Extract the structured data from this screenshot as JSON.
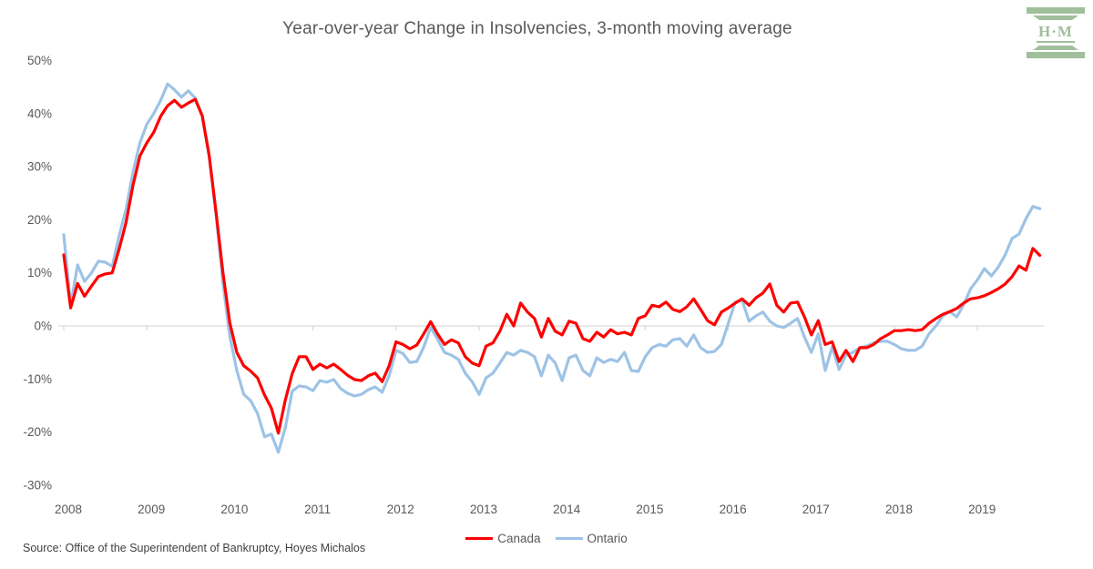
{
  "header": {
    "logo_text": "H·M"
  },
  "footer": {
    "source": "Source: Office of the Superintendent of Bankruptcy, Hoyes Michalos"
  },
  "colors": {
    "title_text": "#595959",
    "axis_text": "#595959",
    "gridline": "#d9d9d9",
    "source_text": "#404040",
    "logo_green": "#a0bf9a"
  },
  "chart_data": {
    "type": "line",
    "title": "Year-over-year Change in Insolvencies, 3-month moving average",
    "frequency": "monthly",
    "x_tick_labels": [
      "2008",
      "2009",
      "2010",
      "2011",
      "2012",
      "2013",
      "2014",
      "2015",
      "2016",
      "2017",
      "2018",
      "2019"
    ],
    "y_tick_labels": [
      "50%",
      "40%",
      "30%",
      "20%",
      "10%",
      "0%",
      "-10%",
      "-20%",
      "-30%"
    ],
    "ylim": [
      -30,
      50
    ],
    "y_tick_step": 10,
    "unit": "%",
    "grid": "zero-line-only",
    "legend_position": "bottom-center",
    "series": [
      {
        "name": "Canada",
        "color": "#ff0000",
        "values": [
          13.4,
          3.4,
          8.0,
          5.6,
          7.5,
          9.3,
          9.8,
          10.0,
          14.5,
          19.5,
          26.5,
          32.0,
          34.5,
          36.5,
          39.5,
          41.5,
          42.5,
          41.2,
          42.0,
          42.7,
          39.6,
          32.2,
          21.4,
          10.0,
          0.5,
          -5.0,
          -7.5,
          -8.5,
          -9.8,
          -13.0,
          -15.5,
          -20.2,
          -14.0,
          -9.0,
          -5.8,
          -5.8,
          -8.2,
          -7.2,
          -7.9,
          -7.2,
          -8.2,
          -9.3,
          -10.1,
          -10.3,
          -9.4,
          -8.9,
          -10.5,
          -7.5,
          -3.0,
          -3.5,
          -4.3,
          -3.6,
          -1.5,
          0.8,
          -1.5,
          -3.5,
          -2.6,
          -3.2,
          -5.8,
          -7.0,
          -7.5,
          -3.8,
          -3.2,
          -1.0,
          2.2,
          0.0,
          4.3,
          2.6,
          1.4,
          -2.1,
          1.4,
          -1.0,
          -1.7,
          0.9,
          0.5,
          -2.4,
          -2.9,
          -1.2,
          -2.1,
          -0.7,
          -1.5,
          -1.2,
          -1.7,
          1.4,
          1.9,
          3.9,
          3.6,
          4.5,
          3.1,
          2.7,
          3.6,
          5.1,
          3.1,
          1.0,
          0.2,
          2.6,
          3.4,
          4.3,
          5.1,
          3.9,
          5.3,
          6.2,
          7.9,
          3.9,
          2.6,
          4.3,
          4.5,
          1.7,
          -1.7,
          1.0,
          -3.5,
          -3.0,
          -6.7,
          -4.6,
          -6.7,
          -4.1,
          -4.1,
          -3.5,
          -2.4,
          -1.7,
          -0.9,
          -0.9,
          -0.7,
          -0.9,
          -0.7,
          0.5,
          1.4,
          2.2,
          2.7,
          3.3,
          4.3,
          5.1,
          5.3,
          5.7,
          6.3,
          7.0,
          7.9,
          9.3,
          11.3,
          10.5,
          14.6,
          13.3
        ]
      },
      {
        "name": "Ontario",
        "color": "#9dc3e6",
        "values": [
          17.2,
          3.9,
          11.5,
          8.4,
          10.0,
          12.2,
          12.0,
          11.2,
          17.0,
          22.0,
          29.0,
          34.5,
          38.0,
          40.0,
          42.5,
          45.6,
          44.5,
          43.1,
          44.3,
          42.9,
          39.6,
          31.9,
          21.0,
          8.0,
          -2.0,
          -8.4,
          -12.9,
          -14.1,
          -16.5,
          -20.9,
          -20.4,
          -23.8,
          -19.2,
          -12.3,
          -11.3,
          -11.5,
          -12.2,
          -10.3,
          -10.6,
          -10.1,
          -11.8,
          -12.7,
          -13.2,
          -12.9,
          -12.0,
          -11.5,
          -12.5,
          -9.4,
          -4.6,
          -5.2,
          -6.9,
          -6.7,
          -4.0,
          -0.3,
          -2.5,
          -5.0,
          -5.5,
          -6.3,
          -8.9,
          -10.5,
          -12.9,
          -9.8,
          -8.9,
          -7.0,
          -5.0,
          -5.5,
          -4.6,
          -5.0,
          -5.8,
          -9.4,
          -5.5,
          -7.0,
          -10.3,
          -6.0,
          -5.5,
          -8.4,
          -9.4,
          -6.0,
          -6.9,
          -6.3,
          -6.7,
          -5.0,
          -8.4,
          -8.6,
          -5.8,
          -4.1,
          -3.5,
          -3.8,
          -2.6,
          -2.4,
          -3.8,
          -1.7,
          -4.1,
          -5.0,
          -4.8,
          -3.5,
          0.5,
          4.5,
          4.8,
          0.9,
          1.9,
          2.6,
          0.9,
          0.0,
          -0.3,
          0.5,
          1.4,
          -2.1,
          -5.0,
          -1.5,
          -8.4,
          -4.0,
          -8.2,
          -5.5,
          -5.0,
          -4.1,
          -3.8,
          -3.2,
          -2.9,
          -2.9,
          -3.5,
          -4.3,
          -4.6,
          -4.6,
          -3.8,
          -1.5,
          0.0,
          1.9,
          2.7,
          1.7,
          4.0,
          7.0,
          8.7,
          10.8,
          9.4,
          11.1,
          13.4,
          16.5,
          17.3,
          20.2,
          22.5,
          22.1
        ]
      }
    ]
  }
}
